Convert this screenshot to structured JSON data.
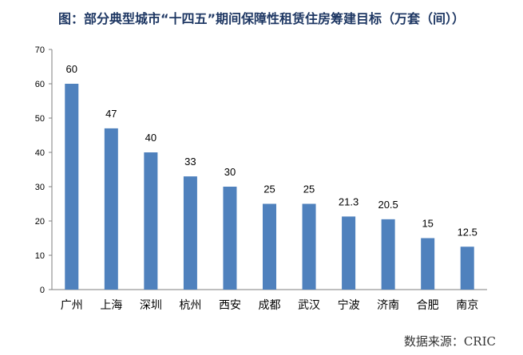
{
  "chart_data": {
    "type": "bar",
    "title": "图：部分典型城市“十四五”期间保障性租赁住房筹建目标（万套（间））",
    "categories": [
      "广州",
      "上海",
      "深圳",
      "杭州",
      "西安",
      "成都",
      "武汉",
      "宁波",
      "济南",
      "合肥",
      "南京"
    ],
    "values": [
      60,
      47,
      40,
      33,
      30,
      25,
      25,
      21.3,
      20.5,
      15,
      12.5
    ],
    "data_labels": [
      "60",
      "47",
      "40",
      "33",
      "30",
      "25",
      "25",
      "21.3",
      "20.5",
      "15",
      "12.5"
    ],
    "yticks": [
      "0",
      "10",
      "20",
      "30",
      "40",
      "50",
      "60",
      "70"
    ],
    "ylim": [
      0,
      70
    ],
    "xlabel": "",
    "ylabel": "",
    "grid": false,
    "legend": false,
    "bar_color": "#4f81bd"
  },
  "source": "数据来源：CRIC"
}
